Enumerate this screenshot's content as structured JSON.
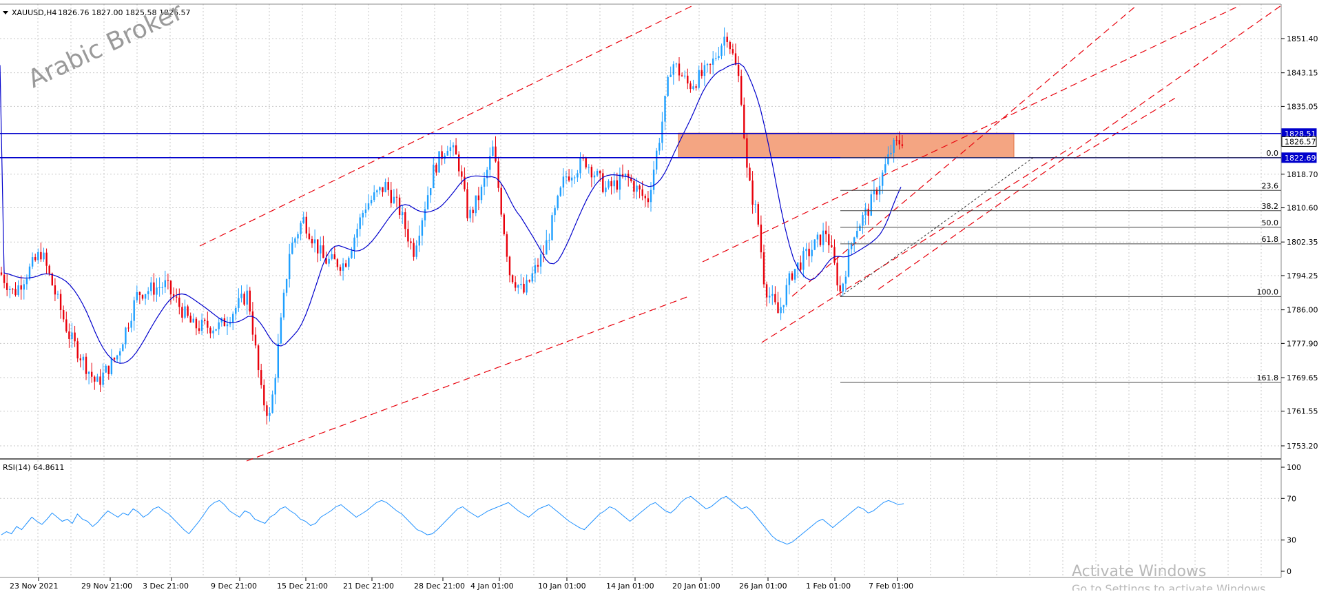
{
  "chart_data": {
    "type": "candlestick",
    "symbol_header": "XAUUSD,H4",
    "ohlc_header": "1826.76 1827.00 1825.58 1826.57",
    "watermark": "Arabic Broker",
    "price_axis": {
      "ticks": [
        "1851.40",
        "1843.15",
        "1835.05",
        "1818.70",
        "1810.60",
        "1802.35",
        "1794.25",
        "1786.00",
        "1777.90",
        "1769.65",
        "1761.55",
        "1753.20"
      ],
      "tick_values": [
        1851.4,
        1843.15,
        1835.05,
        1818.7,
        1810.6,
        1802.35,
        1794.25,
        1786.0,
        1777.9,
        1769.65,
        1761.55,
        1753.2
      ],
      "ylim": [
        1749.0,
        1856.5
      ]
    },
    "time_axis": {
      "labels": [
        "23 Nov 2021",
        "29 Nov 21:00",
        "3 Dec 21:00",
        "9 Dec 21:00",
        "15 Dec 21:00",
        "21 Dec 21:00",
        "28 Dec 21:00",
        "4 Jan 01:00",
        "10 Jan 01:00",
        "14 Jan 01:00",
        "20 Jan 01:00",
        "26 Jan 01:00",
        "1 Feb 01:00",
        "7 Feb 01:00"
      ]
    },
    "price_tags": [
      {
        "value": 1828.51,
        "label": "1828.51",
        "color": "#0000cc"
      },
      {
        "value": 1826.57,
        "label": "1826.57",
        "color": "#ffffff"
      },
      {
        "value": 1822.69,
        "label": "1822.69",
        "color": "#0000cc"
      }
    ],
    "horizontal_lines": [
      1828.51,
      1822.69
    ],
    "supply_zone": {
      "top": 1828.6,
      "bottom": 1822.7,
      "color": "#f4a582"
    },
    "fibonacci": {
      "high": 1822.69,
      "low": 1789.2,
      "levels": [
        {
          "label": "0.0",
          "value": 1822.69
        },
        {
          "label": "23.6",
          "value": 1814.8
        },
        {
          "label": "38.2",
          "value": 1809.9
        },
        {
          "label": "50.0",
          "value": 1805.9
        },
        {
          "label": "61.8",
          "value": 1801.9
        },
        {
          "label": "100.0",
          "value": 1789.2
        },
        {
          "label": "161.8",
          "value": 1768.5
        }
      ]
    },
    "rsi": {
      "label": "RSI(14) 64.8611",
      "ticks": [
        "100",
        "70",
        "30",
        "0"
      ],
      "tick_values": [
        100,
        70,
        30,
        0
      ],
      "series": [
        35,
        38,
        36,
        43,
        40,
        46,
        52,
        48,
        45,
        50,
        56,
        52,
        48,
        50,
        46,
        55,
        50,
        48,
        43,
        47,
        53,
        58,
        55,
        52,
        56,
        54,
        60,
        57,
        52,
        55,
        60,
        62,
        58,
        55,
        50,
        45,
        40,
        36,
        42,
        48,
        55,
        62,
        66,
        68,
        64,
        58,
        55,
        52,
        58,
        56,
        50,
        48,
        46,
        52,
        55,
        60,
        62,
        58,
        55,
        50,
        48,
        44,
        46,
        52,
        55,
        58,
        62,
        64,
        60,
        56,
        52,
        55,
        58,
        62,
        66,
        68,
        66,
        62,
        58,
        55,
        50,
        45,
        40,
        38,
        35,
        36,
        40,
        45,
        50,
        55,
        60,
        62,
        58,
        55,
        52,
        55,
        58,
        60,
        62,
        64,
        66,
        62,
        58,
        55,
        52,
        56,
        60,
        62,
        64,
        60,
        56,
        52,
        48,
        45,
        42,
        40,
        45,
        50,
        55,
        58,
        62,
        60,
        56,
        52,
        48,
        52,
        56,
        60,
        64,
        66,
        62,
        58,
        56,
        60,
        66,
        70,
        72,
        68,
        64,
        60,
        62,
        66,
        70,
        72,
        68,
        64,
        60,
        62,
        58,
        52,
        46,
        40,
        34,
        30,
        28,
        26,
        28,
        32,
        36,
        40,
        44,
        48,
        50,
        46,
        42,
        46,
        50,
        54,
        58,
        62,
        60,
        56,
        58,
        62,
        66,
        68,
        66,
        64,
        65
      ],
      "color": "#1e90ff"
    },
    "overlay_text": {
      "line1": "Activate Windows",
      "line2": "Go to Settings to activate Windows."
    },
    "colors": {
      "bull": "#1e9fff",
      "bear": "#e8000b",
      "ma": "#0000cc",
      "channel": "#e8000b",
      "grid": "#c8c8c8"
    }
  }
}
